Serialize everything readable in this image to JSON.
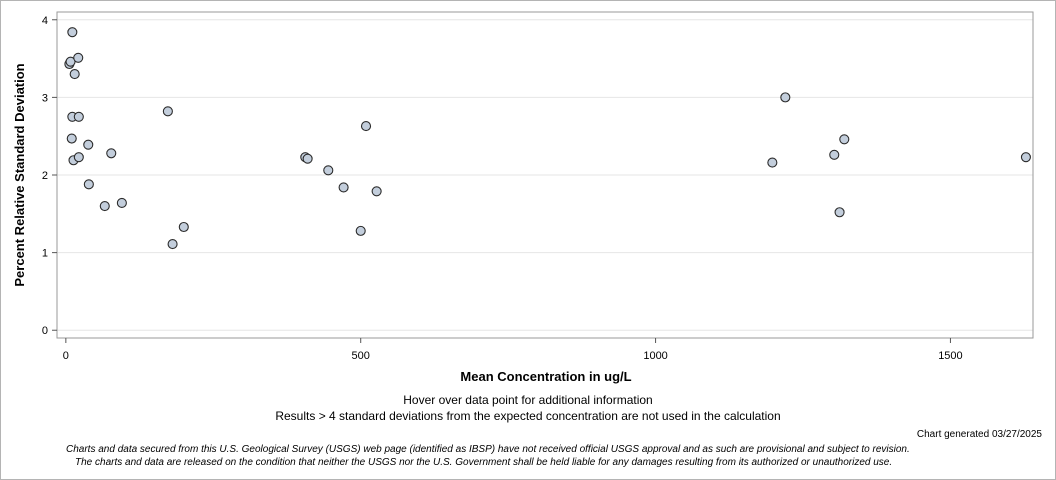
{
  "chart_data": {
    "type": "scatter",
    "title": "",
    "xlabel": "Mean Concentration in ug/L",
    "ylabel": "Percent Relative Standard Deviation",
    "xlim": [
      -15,
      1640
    ],
    "ylim": [
      -0.1,
      4.1
    ],
    "x_ticks": [
      0,
      500,
      1000,
      1500
    ],
    "x_tick_labels": [
      "0",
      "500",
      "1000",
      "1500"
    ],
    "y_ticks": [
      0,
      1,
      2,
      3,
      4
    ],
    "y_tick_labels": [
      "0",
      "1",
      "2",
      "3",
      "4"
    ],
    "grid": "horizontal",
    "marker_fill": "#c3cedc",
    "marker_stroke": "#2b2b2b",
    "gridline_color": "#e6e6e6",
    "points": [
      {
        "x": 6,
        "y": 3.43
      },
      {
        "x": 8,
        "y": 3.46
      },
      {
        "x": 11,
        "y": 3.84
      },
      {
        "x": 15,
        "y": 3.3
      },
      {
        "x": 21,
        "y": 3.51
      },
      {
        "x": 11,
        "y": 2.75
      },
      {
        "x": 22,
        "y": 2.75
      },
      {
        "x": 10,
        "y": 2.47
      },
      {
        "x": 13,
        "y": 2.19
      },
      {
        "x": 22,
        "y": 2.23
      },
      {
        "x": 38,
        "y": 2.39
      },
      {
        "x": 39,
        "y": 1.88
      },
      {
        "x": 66,
        "y": 1.6
      },
      {
        "x": 77,
        "y": 2.28
      },
      {
        "x": 95,
        "y": 1.64
      },
      {
        "x": 173,
        "y": 2.82
      },
      {
        "x": 181,
        "y": 1.11
      },
      {
        "x": 200,
        "y": 1.33
      },
      {
        "x": 406,
        "y": 2.23
      },
      {
        "x": 410,
        "y": 2.21
      },
      {
        "x": 445,
        "y": 2.06
      },
      {
        "x": 471,
        "y": 1.84
      },
      {
        "x": 500,
        "y": 1.28
      },
      {
        "x": 509,
        "y": 2.63
      },
      {
        "x": 527,
        "y": 1.79
      },
      {
        "x": 1198,
        "y": 2.16
      },
      {
        "x": 1220,
        "y": 3.0
      },
      {
        "x": 1303,
        "y": 2.26
      },
      {
        "x": 1312,
        "y": 1.52
      },
      {
        "x": 1320,
        "y": 2.46
      },
      {
        "x": 1628,
        "y": 2.23
      }
    ]
  },
  "notes": {
    "hover": "Hover over data point for additional information",
    "results": "Results > 4 standard deviations from the expected concentration are not used in the calculation",
    "generated": "Chart generated 03/27/2025",
    "disclaimer_line1": "Charts and data secured from this U.S. Geological Survey (USGS) web page (identified as IBSP) have not received official USGS approval and as such are provisional and subject to revision.",
    "disclaimer_line2": "The charts and data are released on the condition that neither the USGS nor the U.S. Government shall be held liable for any damages resulting from its authorized or unauthorized use."
  }
}
